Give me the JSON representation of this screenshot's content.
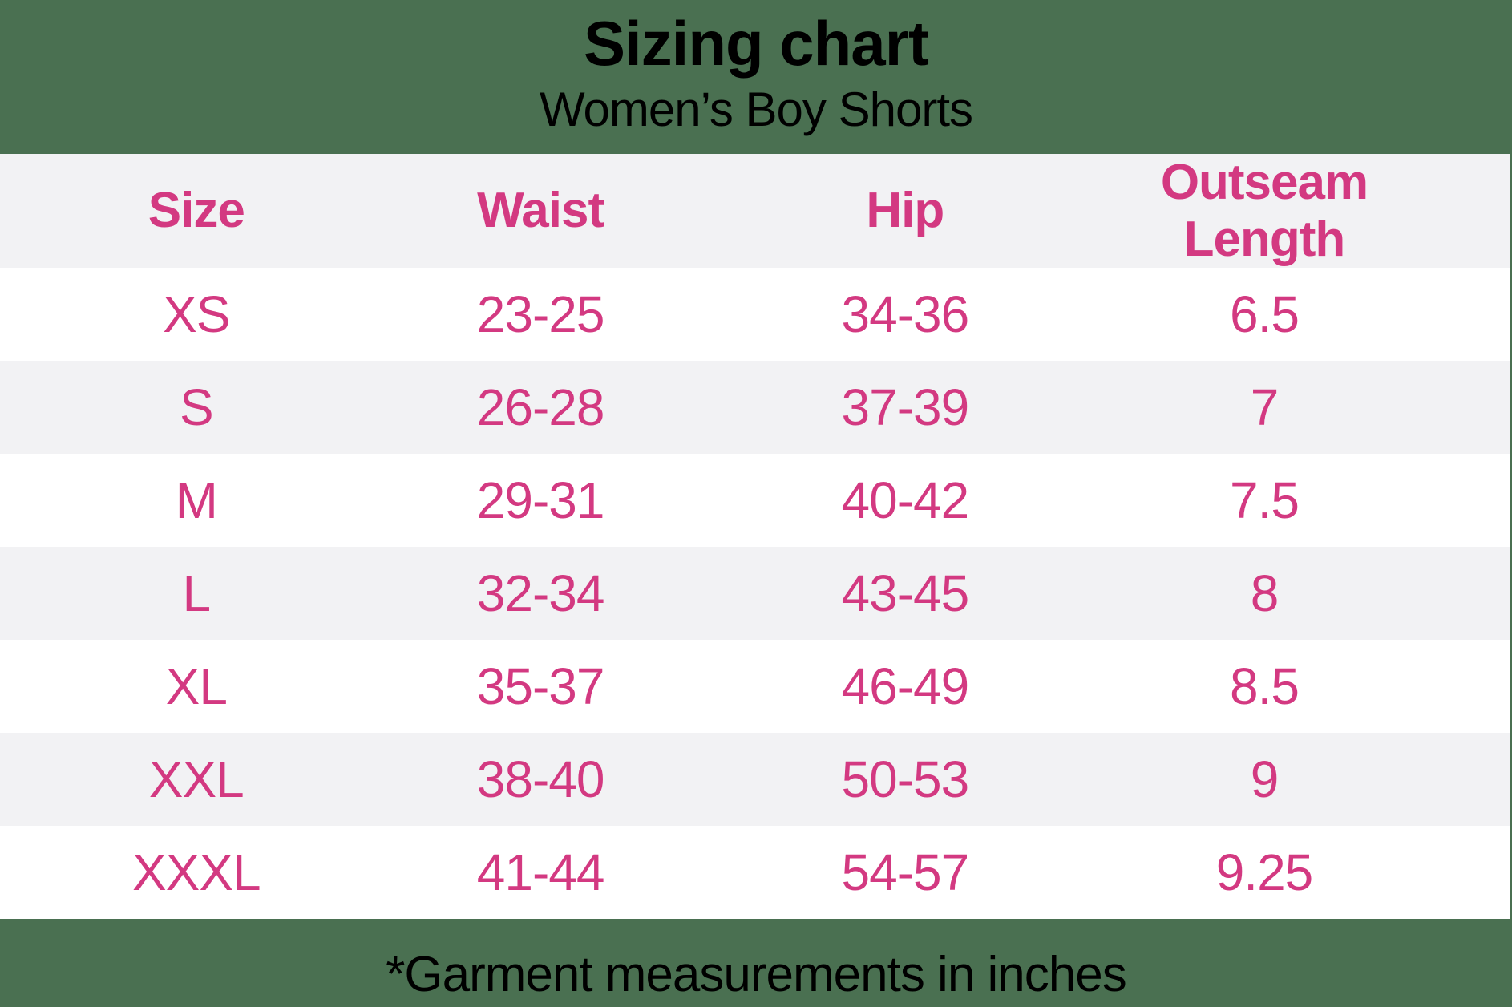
{
  "title": "Sizing chart",
  "subtitle": "Women’s Boy Shorts",
  "footnote": "*Garment measurements in inches",
  "colors": {
    "background_green": "#4a7051",
    "accent_pink": "#d33981",
    "row_alt_gray": "#f2f2f4",
    "row_white": "#ffffff",
    "text_black": "#000000"
  },
  "chart_data": {
    "type": "table",
    "title": "Sizing chart",
    "subtitle": "Women’s Boy Shorts",
    "columns": [
      "Size",
      "Waist",
      "Hip",
      "Outseam Length"
    ],
    "rows": [
      [
        "XS",
        "23-25",
        "34-36",
        "6.5"
      ],
      [
        "S",
        "26-28",
        "37-39",
        "7"
      ],
      [
        "M",
        "29-31",
        "40-42",
        "7.5"
      ],
      [
        "L",
        "32-34",
        "43-45",
        "8"
      ],
      [
        "XL",
        "35-37",
        "46-49",
        "8.5"
      ],
      [
        "XXL",
        "38-40",
        "50-53",
        "9"
      ],
      [
        "XXXL",
        "41-44",
        "54-57",
        "9.25"
      ]
    ],
    "units": "inches",
    "footnote": "*Garment measurements in inches",
    "layout_hints": {
      "row_striping": [
        "white",
        "gray"
      ],
      "header_background": "gray",
      "text_alignment": "center"
    }
  }
}
